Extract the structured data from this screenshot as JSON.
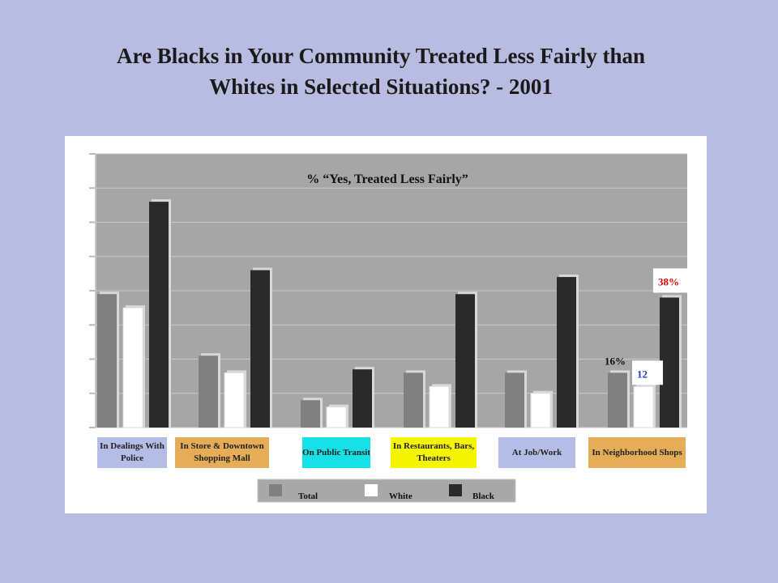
{
  "title": {
    "line1": "Are Blacks in Your Community Treated Less Fairly than",
    "line2": "Whites in Selected Situations? - 2001"
  },
  "colors": {
    "background": "#b8bce0",
    "plot_area": "#a6a6a6",
    "total": "#808080",
    "white": "#ffffff",
    "black": "#2a2a2a",
    "highlight_red": "#e00000",
    "highlight_blue": "#1a3cc8"
  },
  "chart_data": {
    "type": "bar",
    "title": "% “Yes, Treated Less Fairly”",
    "categories": [
      "In Dealings With Police",
      "In Store & Downtown Shopping Mall",
      "On Public Transit",
      "In Restaurants, Bars, Theaters",
      "At Job/Work",
      "In Neighborhood Shops"
    ],
    "category_colors": [
      "#b3bde6",
      "#e6ad58",
      "#17e0e6",
      "#f5f500",
      "#b3bde6",
      "#e6ad58"
    ],
    "series": [
      {
        "name": "Total",
        "values": [
          39,
          21,
          8,
          16,
          16,
          16
        ]
      },
      {
        "name": "White",
        "values": [
          35,
          16,
          6,
          12,
          10,
          12
        ]
      },
      {
        "name": "Black",
        "values": [
          66,
          46,
          17,
          39,
          44,
          38
        ]
      }
    ],
    "visible_labels": [
      {
        "category": 5,
        "series": 0,
        "text": "16%"
      },
      {
        "category": 5,
        "series": 1,
        "text": "12"
      },
      {
        "category": 5,
        "series": 2,
        "text": "38%"
      }
    ],
    "ylim": [
      0,
      80
    ],
    "grid": true,
    "legend": "bottom"
  }
}
